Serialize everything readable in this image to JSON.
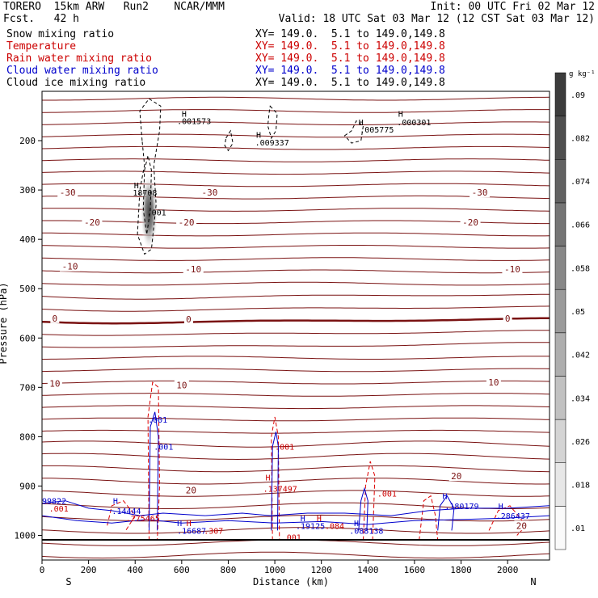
{
  "header": {
    "model": "TORERO  15km ARW   Run2    NCAR/MMM",
    "init": "Init: 00 UTC Fri 02 Mar 12",
    "fcst": "Fcst.   42 h",
    "valid": "Valid: 18 UTC Sat 03 Mar 12 (12 CST Sat 03 Mar 12)",
    "fields": [
      {
        "name": "Snow mixing ratio",
        "xy": "XY= 149.0.  5.1 to 149.0,149.8",
        "color": "#000000"
      },
      {
        "name": "Temperature",
        "xy": "XY= 149.0.  5.1 to 149.0,149.8",
        "color": "#cc0000"
      },
      {
        "name": "Rain water mixing ratio",
        "xy": "XY= 149.0.  5.1 to 149.0,149.8",
        "color": "#cc0000"
      },
      {
        "name": "Cloud water mixing ratio",
        "xy": "XY= 149.0.  5.1 to 149.0,149.8",
        "color": "#0000cc"
      },
      {
        "name": "Cloud ice mixing ratio",
        "xy": "XY= 149.0.  5.1 to 149.0,149.8",
        "color": "#000000"
      }
    ]
  },
  "chart_data": {
    "type": "contour",
    "xlabel": "Distance (km)",
    "ylabel": "Pressure (hPa)",
    "xlim": [
      0,
      2180
    ],
    "ylim": [
      1050,
      100
    ],
    "xticks": [
      0,
      200,
      400,
      600,
      800,
      1000,
      1200,
      1400,
      1600,
      1800,
      2000
    ],
    "yticks": [
      200,
      300,
      400,
      500,
      600,
      700,
      800,
      900,
      1000
    ],
    "end_labels": {
      "left": "S",
      "right": "N"
    },
    "colorbar": {
      "unit": "g kg⁻¹",
      "ticks": [
        ".01",
        ".018",
        ".026",
        ".034",
        ".042",
        ".05",
        ".058",
        ".066",
        ".074",
        ".082",
        ".09"
      ],
      "tick_values": [
        0.01,
        0.018,
        0.026,
        0.034,
        0.042,
        0.05,
        0.058,
        0.066,
        0.074,
        0.082,
        0.09
      ]
    },
    "temperature_labels": [
      {
        "text": "-30",
        "x": 110,
        "p": 305
      },
      {
        "text": "-30",
        "x": 720,
        "p": 305
      },
      {
        "text": "-30",
        "x": 1880,
        "p": 305
      },
      {
        "text": "-20",
        "x": 215,
        "p": 365
      },
      {
        "text": "-20",
        "x": 620,
        "p": 365
      },
      {
        "text": "-20",
        "x": 1840,
        "p": 365
      },
      {
        "text": "-10",
        "x": 120,
        "p": 455
      },
      {
        "text": "-10",
        "x": 650,
        "p": 460
      },
      {
        "text": "-10",
        "x": 2020,
        "p": 460
      },
      {
        "text": "0",
        "x": 55,
        "p": 560
      },
      {
        "text": "0",
        "x": 630,
        "p": 562
      },
      {
        "text": "0",
        "x": 2000,
        "p": 560
      },
      {
        "text": "10",
        "x": 55,
        "p": 692
      },
      {
        "text": "10",
        "x": 600,
        "p": 695
      },
      {
        "text": "10",
        "x": 1940,
        "p": 690
      },
      {
        "text": "20",
        "x": 640,
        "p": 908
      },
      {
        "text": "20",
        "x": 1780,
        "p": 880
      },
      {
        "text": "20",
        "x": 2060,
        "p": 980
      }
    ],
    "maxima_labels": [
      {
        "text": "H",
        "x": 395,
        "p": 290,
        "color": "#000000"
      },
      {
        "text": "18708",
        "x": 390,
        "p": 305,
        "color": "#000000"
      },
      {
        "text": ".001",
        "x": 450,
        "p": 345,
        "color": "#000000"
      },
      {
        "text": "H",
        "x": 600,
        "p": 145,
        "color": "#000000"
      },
      {
        "text": ".001573",
        "x": 580,
        "p": 160,
        "color": "#000000"
      },
      {
        "text": "H",
        "x": 920,
        "p": 188,
        "color": "#000000"
      },
      {
        "text": ".009337",
        "x": 915,
        "p": 203,
        "color": "#000000"
      },
      {
        "text": "H",
        "x": 1360,
        "p": 162,
        "color": "#000000"
      },
      {
        "text": ".005775",
        "x": 1365,
        "p": 177,
        "color": "#000000"
      },
      {
        "text": "H",
        "x": 1530,
        "p": 145,
        "color": "#000000"
      },
      {
        "text": ".000301",
        "x": 1525,
        "p": 162,
        "color": "#000000"
      },
      {
        "text": ".001",
        "x": 455,
        "p": 765,
        "color": "#0000cc"
      },
      {
        "text": ".001",
        "x": 480,
        "p": 820,
        "color": "#0000cc"
      },
      {
        "text": ".001",
        "x": 1000,
        "p": 820,
        "color": "#cc0000"
      },
      {
        "text": "H",
        "x": 960,
        "p": 882,
        "color": "#cc0000"
      },
      {
        "text": ".137497",
        "x": 950,
        "p": 905,
        "color": "#cc0000"
      },
      {
        "text": "99822",
        "x": 0,
        "p": 930,
        "color": "#0000cc"
      },
      {
        "text": "H",
        "x": 305,
        "p": 930,
        "color": "#0000cc"
      },
      {
        "text": ".14444",
        "x": 300,
        "p": 950,
        "color": "#0000cc"
      },
      {
        "text": ".275465",
        "x": 360,
        "p": 965,
        "color": "#cc0000"
      },
      {
        "text": ".001",
        "x": 30,
        "p": 945,
        "color": "#cc0000"
      },
      {
        "text": "H",
        "x": 580,
        "p": 975,
        "color": "#0000cc"
      },
      {
        "text": "H",
        "x": 620,
        "p": 975,
        "color": "#cc0000"
      },
      {
        "text": ".16687",
        "x": 580,
        "p": 990,
        "color": "#0000cc"
      },
      {
        "text": ".307",
        "x": 695,
        "p": 990,
        "color": "#cc0000"
      },
      {
        "text": "H",
        "x": 1110,
        "p": 965,
        "color": "#0000cc"
      },
      {
        "text": "H",
        "x": 1180,
        "p": 965,
        "color": "#cc0000"
      },
      {
        "text": ".19125",
        "x": 1090,
        "p": 980,
        "color": "#0000cc"
      },
      {
        "text": ".084",
        "x": 1215,
        "p": 980,
        "color": "#cc0000"
      },
      {
        "text": "H",
        "x": 1340,
        "p": 975,
        "color": "#0000cc"
      },
      {
        "text": ".088138",
        "x": 1320,
        "p": 990,
        "color": "#0000cc"
      },
      {
        "text": ".001",
        "x": 1440,
        "p": 915,
        "color": "#cc0000"
      },
      {
        "text": "H",
        "x": 1720,
        "p": 920,
        "color": "#0000cc"
      },
      {
        "text": ".180179",
        "x": 1730,
        "p": 940,
        "color": "#0000cc"
      },
      {
        "text": "H",
        "x": 1960,
        "p": 940,
        "color": "#0000cc"
      },
      {
        "text": ".286437",
        "x": 1950,
        "p": 960,
        "color": "#0000cc"
      },
      {
        "text": ".001",
        "x": 1030,
        "p": 1003,
        "color": "#cc0000"
      }
    ]
  }
}
